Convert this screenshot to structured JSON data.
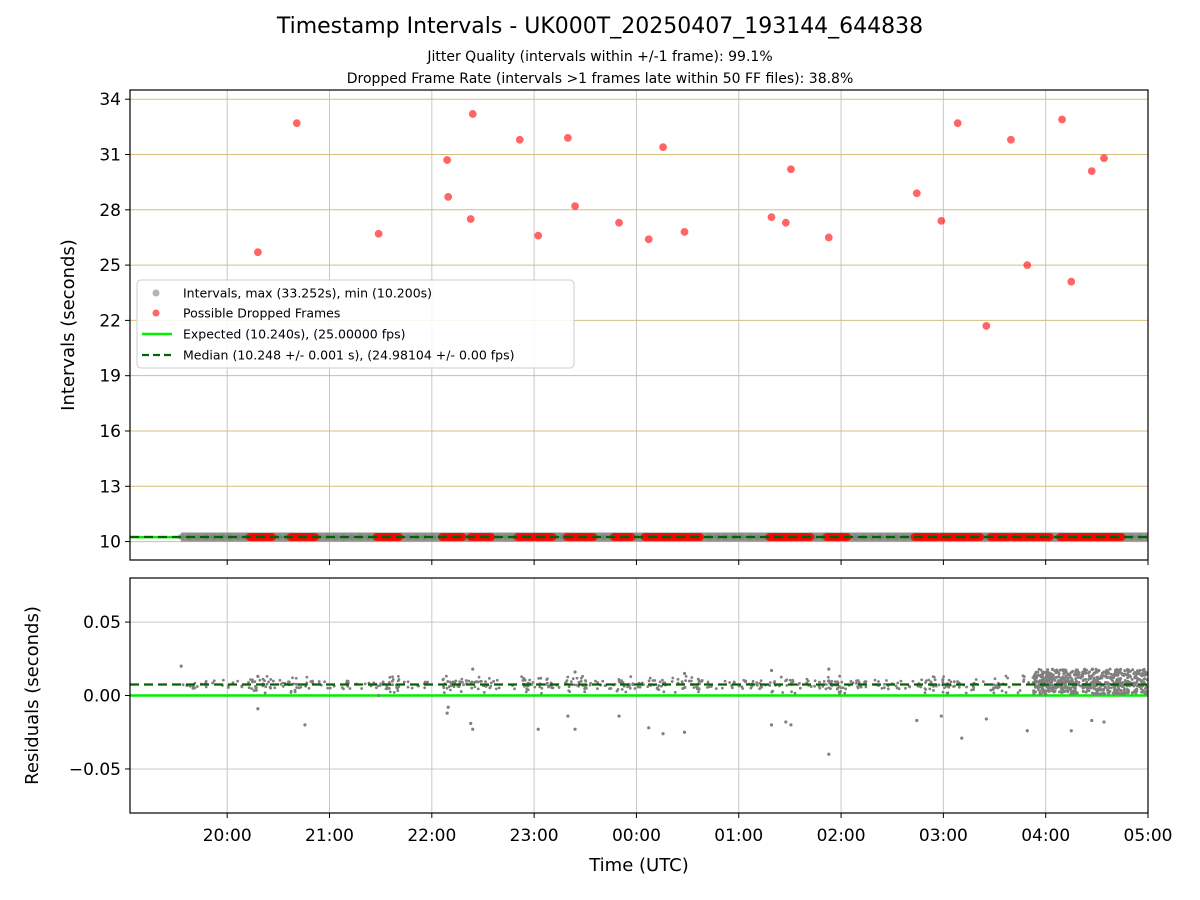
{
  "title": "Timestamp Intervals - UK000T_20250407_193144_644838",
  "subtitle1": "Jitter Quality (intervals within +/-1 frame): 99.1%",
  "subtitle2": "Dropped Frame Rate (intervals >1 frames late within 50 FF files): 38.8%",
  "colors": {
    "interval": "#808080",
    "dropped": "#ff0000",
    "expected": "#00ee00",
    "median": "#006400",
    "hgrid_top": "#d4bf7f",
    "grid": "#c8c8c8"
  },
  "chart_data": [
    {
      "type": "scatter",
      "panel": "intervals",
      "xlabel": "",
      "ylabel": "Intervals (seconds)",
      "x_unit": "hours from 00:00 UTC",
      "xlim": [
        -4.95,
        5.0
      ],
      "ylim": [
        9.0,
        34.5
      ],
      "yticks": [
        10,
        13,
        16,
        19,
        22,
        25,
        28,
        31,
        34
      ],
      "ytick_labels": [
        "10",
        "13",
        "16",
        "19",
        "22",
        "25",
        "28",
        "31",
        "34"
      ],
      "xticks": [
        -4,
        -3,
        -2,
        -1,
        0,
        1,
        2,
        3,
        4,
        5
      ],
      "grid": true,
      "legend": "center-left",
      "legend_entries": [
        "Intervals, max (33.252s), min (10.200s)",
        "Possible Dropped Frames",
        "Expected (10.240s), (25.00000 fps)",
        "Median (10.248 +/- 0.001 s), (24.98104 +/- 0.00 fps)"
      ],
      "expected": 10.24,
      "median": 10.248,
      "intervals_baseline": {
        "value": 10.248,
        "x_range": [
          -4.45,
          5.0
        ]
      },
      "dropped_frames": [
        [
          -3.7,
          25.7
        ],
        [
          -3.32,
          32.7
        ],
        [
          -2.52,
          26.7
        ],
        [
          -1.85,
          30.7
        ],
        [
          -1.84,
          28.7
        ],
        [
          -1.62,
          27.5
        ],
        [
          -1.6,
          33.2
        ],
        [
          -1.14,
          31.8
        ],
        [
          -0.96,
          26.6
        ],
        [
          -0.67,
          31.9
        ],
        [
          -0.6,
          28.2
        ],
        [
          -0.17,
          27.3
        ],
        [
          0.12,
          26.4
        ],
        [
          0.26,
          31.4
        ],
        [
          0.47,
          26.8
        ],
        [
          1.32,
          27.6
        ],
        [
          1.46,
          27.3
        ],
        [
          1.51,
          30.2
        ],
        [
          1.88,
          26.5
        ],
        [
          2.74,
          28.9
        ],
        [
          2.98,
          27.4
        ],
        [
          3.14,
          32.7
        ],
        [
          3.42,
          21.7
        ],
        [
          3.82,
          25.0
        ],
        [
          3.66,
          31.8
        ],
        [
          4.16,
          32.9
        ],
        [
          4.25,
          24.1
        ],
        [
          4.45,
          30.1
        ],
        [
          4.57,
          30.8
        ]
      ],
      "dropped_clusters": [
        [
          -3.78,
          -3.56
        ],
        [
          -3.38,
          -3.14
        ],
        [
          -2.54,
          -2.32
        ],
        [
          -1.9,
          -1.7
        ],
        [
          -1.62,
          -1.42
        ],
        [
          -1.16,
          -0.98
        ],
        [
          -0.96,
          -0.82
        ],
        [
          -0.68,
          -0.42
        ],
        [
          -0.22,
          -0.05
        ],
        [
          0.08,
          0.42
        ],
        [
          0.44,
          0.62
        ],
        [
          1.3,
          1.7
        ],
        [
          1.86,
          2.06
        ],
        [
          2.72,
          2.94
        ],
        [
          2.98,
          3.36
        ],
        [
          3.46,
          3.64
        ],
        [
          3.68,
          4.04
        ],
        [
          4.14,
          4.48
        ],
        [
          4.5,
          4.74
        ]
      ]
    },
    {
      "type": "scatter",
      "panel": "residuals",
      "xlabel": "Time (UTC)",
      "ylabel": "Residuals (seconds)",
      "xlim": [
        -4.95,
        5.0
      ],
      "ylim": [
        -0.08,
        0.08
      ],
      "yticks": [
        0.05,
        0.0,
        -0.05
      ],
      "ytick_labels": [
        "0.05",
        "0.00",
        "−0.05"
      ],
      "xticks": [
        -4,
        -3,
        -2,
        -1,
        0,
        1,
        2,
        3,
        4,
        5
      ],
      "xtick_labels": [
        "20:00",
        "21:00",
        "22:00",
        "23:00",
        "00:00",
        "01:00",
        "02:00",
        "03:00",
        "04:00",
        "05:00"
      ],
      "grid": true,
      "expected": 0.0,
      "median": 0.0075,
      "outliers": [
        [
          -4.45,
          0.02
        ],
        [
          -3.7,
          -0.009
        ],
        [
          -3.24,
          -0.02
        ],
        [
          -1.85,
          -0.012
        ],
        [
          -1.84,
          -0.008
        ],
        [
          -1.62,
          -0.019
        ],
        [
          -1.6,
          -0.023
        ],
        [
          -0.96,
          -0.023
        ],
        [
          -0.67,
          -0.014
        ],
        [
          -0.6,
          -0.023
        ],
        [
          -0.17,
          -0.014
        ],
        [
          0.12,
          -0.022
        ],
        [
          0.26,
          -0.026
        ],
        [
          0.47,
          -0.025
        ],
        [
          1.32,
          -0.02
        ],
        [
          1.46,
          -0.018
        ],
        [
          1.51,
          -0.02
        ],
        [
          1.88,
          -0.04
        ],
        [
          2.74,
          -0.017
        ],
        [
          2.98,
          -0.014
        ],
        [
          3.18,
          -0.029
        ],
        [
          3.42,
          -0.016
        ],
        [
          3.82,
          -0.024
        ],
        [
          4.25,
          -0.024
        ],
        [
          4.45,
          -0.017
        ],
        [
          4.57,
          -0.018
        ],
        [
          -2.52,
          0.0
        ],
        [
          -3.7,
          0.013
        ],
        [
          -1.6,
          0.018
        ],
        [
          1.32,
          0.017
        ],
        [
          1.88,
          0.018
        ],
        [
          0.47,
          0.015
        ],
        [
          -0.6,
          0.016
        ]
      ]
    }
  ]
}
